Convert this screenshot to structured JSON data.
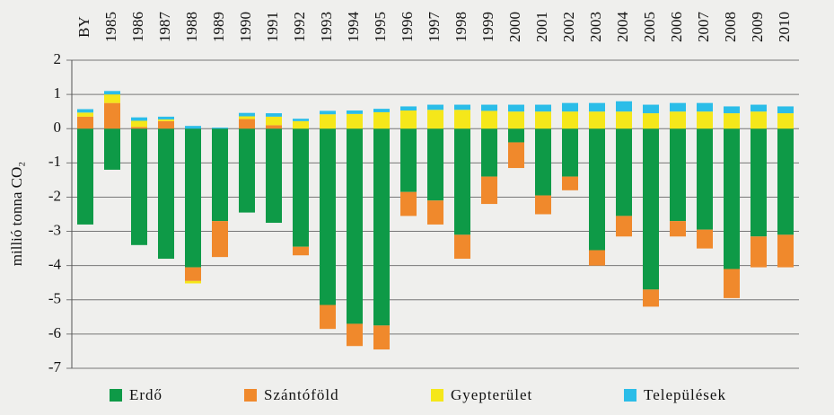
{
  "chart_data": {
    "type": "stacked-bar",
    "y_label": "millió tonna CO₂",
    "categories": [
      "BY",
      "1985",
      "1986",
      "1987",
      "1988",
      "1989",
      "1990",
      "1991",
      "1992",
      "1993",
      "1994",
      "1995",
      "1996",
      "1997",
      "1998",
      "1999",
      "2000",
      "2001",
      "2002",
      "2003",
      "2004",
      "2005",
      "2006",
      "2007",
      "2008",
      "2009",
      "2010"
    ],
    "series": [
      {
        "name": "Erdő",
        "color": "#0e9a47",
        "values": [
          -2.8,
          -1.2,
          -3.4,
          -3.8,
          -4.05,
          -2.7,
          -2.45,
          -2.75,
          -3.45,
          -5.15,
          -5.7,
          -5.75,
          -1.85,
          -2.1,
          -3.1,
          -1.4,
          -0.4,
          -1.95,
          -1.4,
          -3.55,
          -2.55,
          -4.7,
          -2.7,
          -2.95,
          -4.1,
          -3.15,
          -3.1
        ]
      },
      {
        "name": "Szántóföld",
        "color": "#f0892c",
        "values": [
          0.35,
          0.75,
          0.05,
          0.22,
          -0.4,
          -1.05,
          0.28,
          0.1,
          -0.25,
          -0.7,
          -0.65,
          -0.7,
          -0.7,
          -0.7,
          -0.7,
          -0.8,
          -0.75,
          -0.55,
          -0.4,
          -0.45,
          -0.6,
          -0.5,
          -0.45,
          -0.55,
          -0.85,
          -0.9,
          -0.95
        ]
      },
      {
        "name": "Gyepterület",
        "color": "#f5e71a",
        "values": [
          0.12,
          0.25,
          0.18,
          0.05,
          -0.07,
          0,
          0.08,
          0.25,
          0.22,
          0.42,
          0.43,
          0.48,
          0.53,
          0.55,
          0.55,
          0.52,
          0.5,
          0.5,
          0.5,
          0.5,
          0.5,
          0.45,
          0.5,
          0.5,
          0.45,
          0.5,
          0.45
        ]
      },
      {
        "name": "Települések",
        "color": "#2bbde8",
        "values": [
          0.1,
          0.1,
          0.1,
          0.08,
          0.08,
          0.03,
          0.1,
          0.1,
          0.07,
          0.1,
          0.1,
          0.1,
          0.12,
          0.15,
          0.15,
          0.18,
          0.2,
          0.2,
          0.25,
          0.25,
          0.3,
          0.25,
          0.25,
          0.25,
          0.2,
          0.2,
          0.2
        ]
      }
    ],
    "ylim": [
      -7,
      2
    ],
    "yticks": [
      -7,
      -6,
      -5,
      -4,
      -3,
      -2,
      -1,
      0,
      1,
      2
    ],
    "grid": true
  }
}
